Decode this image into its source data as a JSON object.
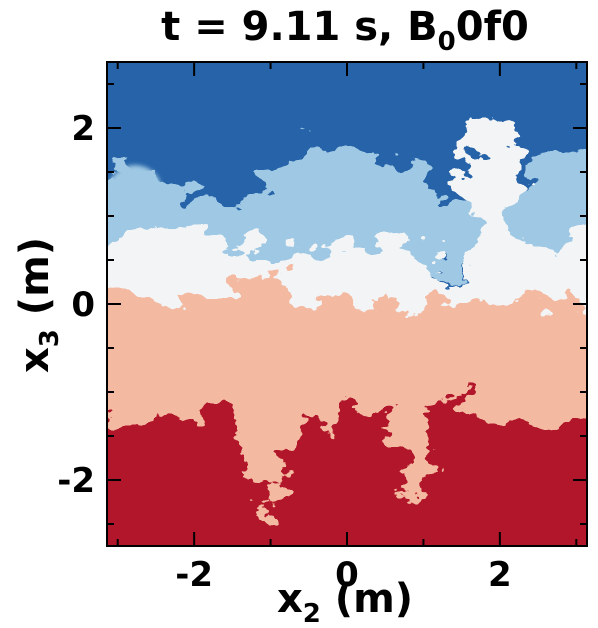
{
  "title": {
    "prefix": "t = 9.11 s,  B",
    "subscript": "0",
    "suffix": "0f0"
  },
  "x_axis": {
    "label_main": "x",
    "label_sub": "2",
    "label_unit": " (m)",
    "ticks": [
      "-2",
      "0",
      "2"
    ],
    "tick_values": [
      -2,
      0,
      2
    ],
    "range": [
      -3.14,
      3.14
    ]
  },
  "y_axis": {
    "label_main": "x",
    "label_sub": "3",
    "label_unit": " (m)",
    "ticks": [
      "2",
      "0",
      "-2"
    ],
    "tick_values": [
      2,
      0,
      -2
    ],
    "range": [
      -2.75,
      2.75
    ]
  },
  "colors": {
    "top_fluid": "#2563a8",
    "bottom_fluid": "#b2182b",
    "mix_light_blue": "#9ec8e3",
    "mix_white": "#f2f4f6",
    "mix_light_red": "#f4b9a1"
  },
  "image_content": "turbulent mixing layer field (blue above, red below)"
}
